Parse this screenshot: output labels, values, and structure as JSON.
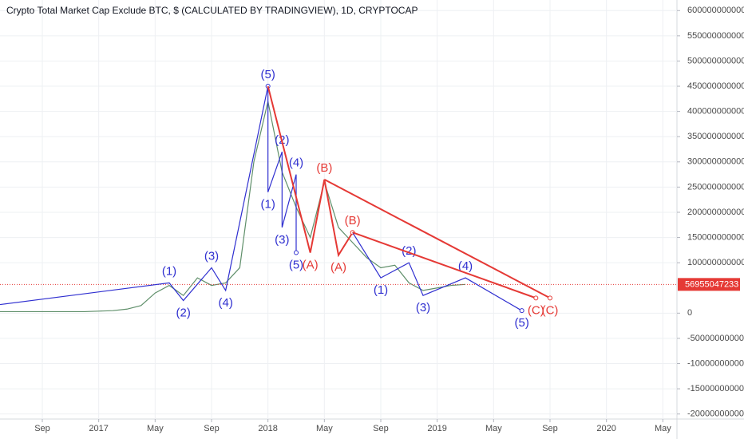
{
  "chart_data": {
    "type": "line",
    "title": "Crypto Total Market Cap Exclude BTC, $ (CALCULATED BY TRADINGVIEW), 1D, CRYPTOCAP",
    "color": "#5f8f6a",
    "x": [
      "2016-06",
      "2016-07",
      "2016-08",
      "2016-09",
      "2016-10",
      "2016-11",
      "2016-12",
      "2017-01",
      "2017-02",
      "2017-03",
      "2017-04",
      "2017-05",
      "2017-06",
      "2017-07",
      "2017-08",
      "2017-09",
      "2017-10",
      "2017-11",
      "2017-12",
      "2018-01",
      "2018-02",
      "2018-03",
      "2018-04",
      "2018-05",
      "2018-06",
      "2018-07",
      "2018-08",
      "2018-09",
      "2018-10",
      "2018-11",
      "2018-12",
      "2019-01",
      "2019-02",
      "2019-03"
    ],
    "values": [
      3000000000,
      3000000000,
      3000000000,
      3000000000,
      3000000000,
      3000000000,
      3000000000,
      4000000000,
      5000000000,
      8000000000,
      15000000000,
      40000000000,
      55000000000,
      35000000000,
      70000000000,
      55000000000,
      60000000000,
      90000000000,
      300000000000,
      420000000000,
      280000000000,
      210000000000,
      150000000000,
      260000000000,
      170000000000,
      140000000000,
      110000000000,
      90000000000,
      95000000000,
      60000000000,
      45000000000,
      50000000000,
      55000000000,
      57000000000
    ],
    "xlim": [
      "2016-06",
      "2020-06"
    ],
    "xticks": [
      {
        "value": "2016-09",
        "label": "Sep"
      },
      {
        "value": "2017-01",
        "label": "2017"
      },
      {
        "value": "2017-05",
        "label": "May"
      },
      {
        "value": "2017-09",
        "label": "Sep"
      },
      {
        "value": "2018-01",
        "label": "2018"
      },
      {
        "value": "2018-05",
        "label": "May"
      },
      {
        "value": "2018-09",
        "label": "Sep"
      },
      {
        "value": "2019-01",
        "label": "2019"
      },
      {
        "value": "2019-05",
        "label": "May"
      },
      {
        "value": "2019-09",
        "label": "Sep"
      },
      {
        "value": "2020-01",
        "label": "2020"
      },
      {
        "value": "2020-05",
        "label": "May"
      }
    ],
    "ylim": [
      -210000000000,
      621000000000
    ],
    "yticks": [
      -200000000000,
      -150000000000,
      -100000000000,
      -50000000000,
      0,
      100000000000,
      150000000000,
      200000000000,
      250000000000,
      300000000000,
      350000000000,
      400000000000,
      450000000000,
      500000000000,
      550000000000,
      600000000000
    ],
    "grid": true,
    "last_price": {
      "value": 56955047233,
      "color": "#e53935"
    },
    "waves": [
      {
        "color": "#2f2fd0",
        "points": [
          {
            "x": "2016-06",
            "y": 17000000000
          },
          {
            "x": "2017-06",
            "y": 60000000000,
            "label": "(1)"
          },
          {
            "x": "2017-07",
            "y": 25000000000,
            "label": "(2)"
          },
          {
            "x": "2017-09",
            "y": 90000000000,
            "label": "(3)"
          },
          {
            "x": "2017-10",
            "y": 45000000000,
            "label": "(4)"
          },
          {
            "x": "2018-01",
            "y": 450000000000,
            "label": "(5)"
          }
        ]
      },
      {
        "color": "#2f2fd0",
        "points": [
          {
            "x": "2018-01",
            "y": 450000000000
          },
          {
            "x": "2018-01",
            "y": 240000000000,
            "label": "(1)"
          },
          {
            "x": "2018-02",
            "y": 320000000000,
            "label": "(2)"
          },
          {
            "x": "2018-02",
            "y": 170000000000,
            "label": "(3)"
          },
          {
            "x": "2018-03",
            "y": 275000000000,
            "label": "(4)"
          },
          {
            "x": "2018-03",
            "y": 120000000000,
            "label": "(5)"
          }
        ]
      },
      {
        "color": "#e53935",
        "points": [
          {
            "x": "2018-01",
            "y": 450000000000
          },
          {
            "x": "2018-04",
            "y": 120000000000,
            "label": "(A)"
          },
          {
            "x": "2018-05",
            "y": 265000000000,
            "label": "(B)"
          },
          {
            "x": "2018-06",
            "y": 115000000000,
            "label": "(A)"
          },
          {
            "x": "2018-07",
            "y": 160000000000,
            "label": "(B)"
          }
        ]
      },
      {
        "color": "#2f2fd0",
        "points": [
          {
            "x": "2018-07",
            "y": 160000000000
          },
          {
            "x": "2018-09",
            "y": 70000000000,
            "label": "(1)"
          },
          {
            "x": "2018-11",
            "y": 100000000000,
            "label": "(2)"
          },
          {
            "x": "2018-12",
            "y": 35000000000,
            "label": "(3)"
          },
          {
            "x": "2019-03",
            "y": 70000000000,
            "label": "(4)"
          },
          {
            "x": "2019-07",
            "y": 5000000000,
            "label": "(5)"
          }
        ]
      },
      {
        "color": "#e53935",
        "points": [
          {
            "x": "2018-07",
            "y": 160000000000
          },
          {
            "x": "2019-08",
            "y": 30000000000,
            "label": "(C)"
          }
        ]
      },
      {
        "color": "#e53935",
        "points": [
          {
            "x": "2018-05",
            "y": 265000000000
          },
          {
            "x": "2019-09",
            "y": 30000000000,
            "label": "(C)"
          }
        ]
      }
    ]
  }
}
